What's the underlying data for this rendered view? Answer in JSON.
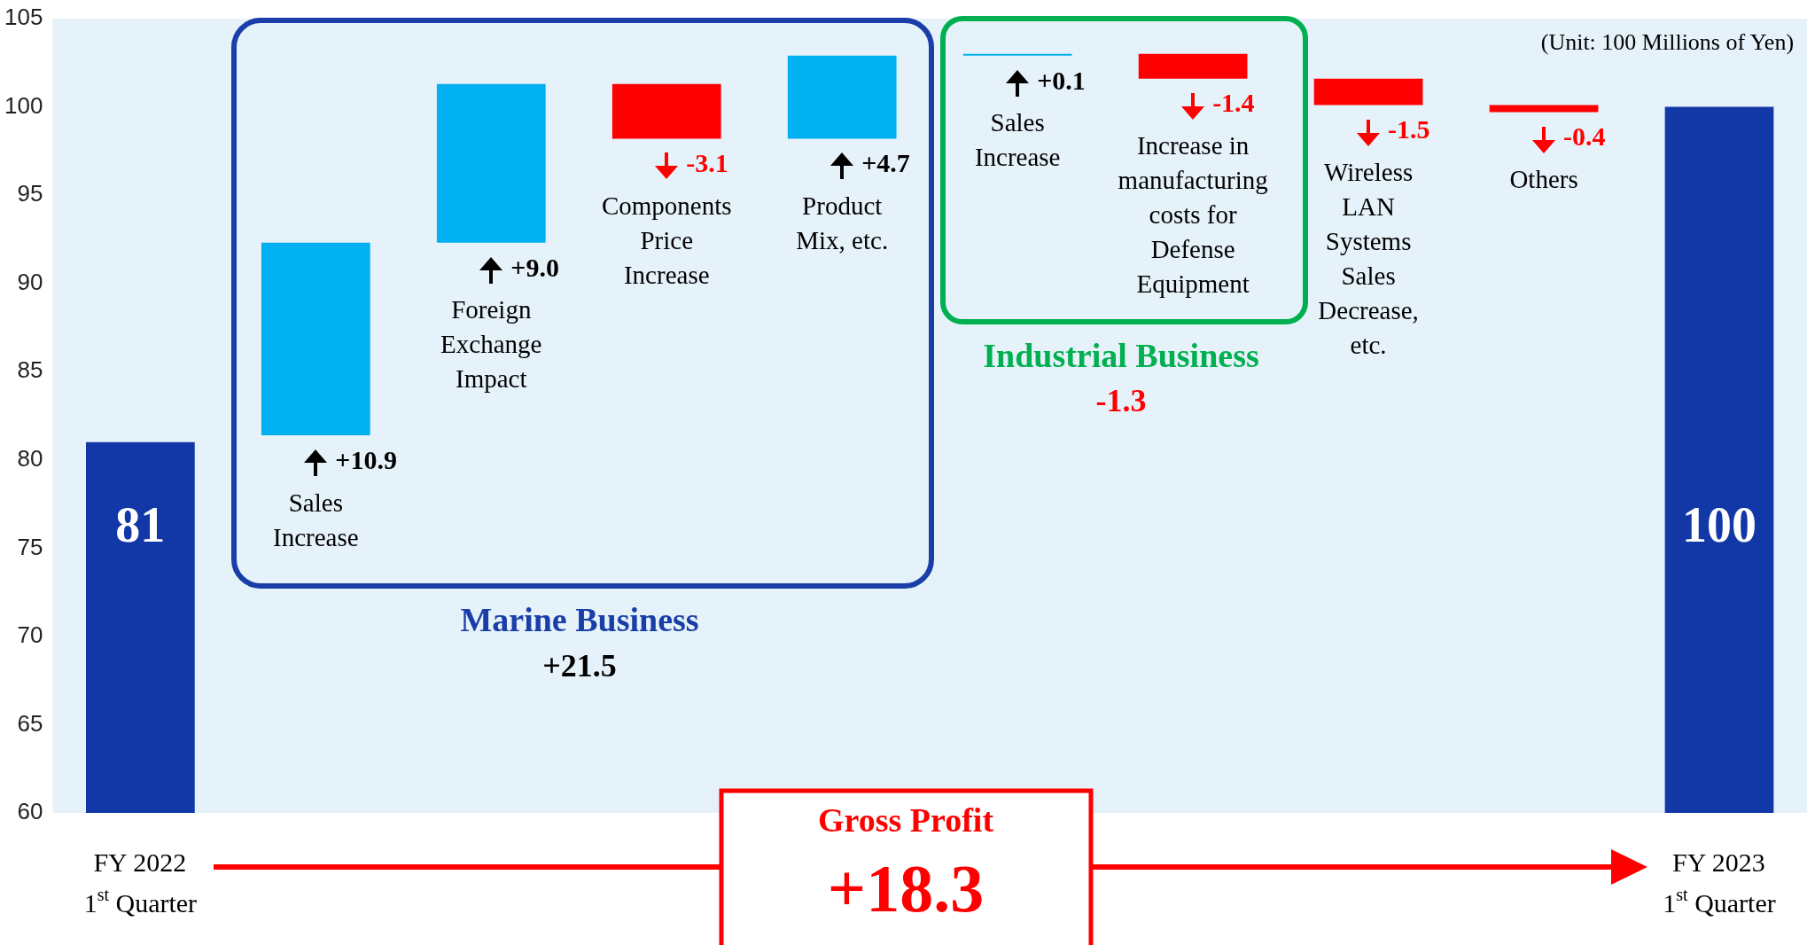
{
  "chart_data": {
    "type": "bar",
    "categories": [
      "FY 2022 1$^{st}$ Quarter",
      "Sales Increase",
      "Foreign Exchange Impact",
      "Components Price Increase",
      "Product Mix, etc.",
      "Sales Increase",
      "Increase in manufacturing costs for Defense Equipment",
      "Wireless LAN Systems Sales Decrease, etc.",
      "Others",
      "FY 2023 1$^{st}$ Quarter"
    ],
    "values": [
      81,
      10.9,
      9.0,
      -3.1,
      4.7,
      0.1,
      -1.4,
      -1.5,
      -0.4,
      100
    ],
    "base": [
      null,
      81.4,
      92.3,
      101.3,
      98.2,
      102.9,
      103.0,
      101.6,
      100.1,
      null
    ],
    "colors": [
      "#1237a6",
      "#00b0f0",
      "#00b0f0",
      "#ff0000",
      "#00b0f0",
      "#00b0f0",
      "#ff0000",
      "#ff0000",
      "#ff0000",
      "#1237a6"
    ],
    "value_labels": [
      "81",
      "+10.9",
      "+9.0",
      "-3.1",
      "+4.7",
      "+0.1",
      "-1.4",
      "-1.5",
      "-0.4",
      "100"
    ],
    "ylim": [
      60,
      105
    ],
    "yticks": [
      60,
      65,
      70,
      75,
      80,
      85,
      90,
      95,
      100,
      105
    ],
    "annotations": [
      "(Unit: 100 Millions of Yen)",
      "Marine Business",
      "+21.5",
      "Industrial Business",
      "-1.3",
      "Gross Profit",
      "+18.3"
    ]
  }
}
